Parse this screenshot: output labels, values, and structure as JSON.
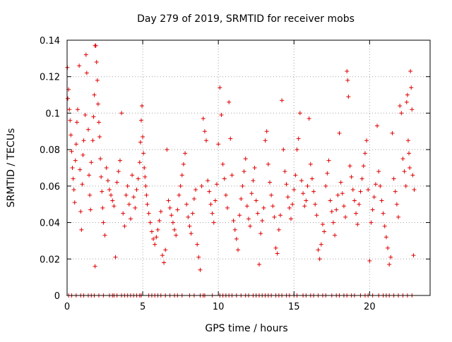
{
  "chart_data": {
    "type": "scatter",
    "title": "Day 279 of 2019, SRMTID for receiver mobs",
    "xlabel": "GPS time / hours",
    "ylabel": "SRMTID / TECUs",
    "xlim": [
      0,
      24
    ],
    "ylim": [
      0,
      0.14
    ],
    "x_ticks": [
      0,
      5,
      10,
      15,
      20
    ],
    "x_tick_labels": [
      "0",
      "5",
      "10",
      "15",
      "20"
    ],
    "y_ticks": [
      0,
      0.02,
      0.04,
      0.06,
      0.08,
      0.1,
      0.12,
      0.14
    ],
    "y_tick_labels": [
      "0",
      "0.02",
      "0.04",
      "0.06",
      "0.08",
      "0.1",
      "0.12",
      "0.14"
    ],
    "grid": true,
    "marker": "plus",
    "series": [
      {
        "name": "SRMTID",
        "color": "#e00000",
        "points": [
          [
            0.02,
            0.125
          ],
          [
            0.05,
            0.108
          ],
          [
            0.1,
            0.113
          ],
          [
            0.15,
            0.102
          ],
          [
            0.2,
            0.096
          ],
          [
            0.25,
            0.088
          ],
          [
            0.3,
            0.079
          ],
          [
            0.35,
            0.07
          ],
          [
            0.4,
            0.064
          ],
          [
            0.45,
            0.058
          ],
          [
            0.5,
            0.051
          ],
          [
            0.55,
            0.074
          ],
          [
            0.6,
            0.083
          ],
          [
            0.65,
            0.095
          ],
          [
            0.7,
            0.102
          ],
          [
            0.8,
            0.126
          ],
          [
            0.85,
            0.069
          ],
          [
            0.9,
            0.046
          ],
          [
            0.95,
            0.036
          ],
          [
            1.0,
            0.061
          ],
          [
            1.05,
            0.077
          ],
          [
            1.1,
            0.085
          ],
          [
            1.2,
            0.099
          ],
          [
            1.25,
            0.132
          ],
          [
            1.3,
            0.122
          ],
          [
            1.4,
            0.091
          ],
          [
            1.45,
            0.066
          ],
          [
            1.5,
            0.055
          ],
          [
            1.55,
            0.047
          ],
          [
            1.6,
            0.073
          ],
          [
            1.7,
            0.085
          ],
          [
            1.75,
            0.098
          ],
          [
            1.8,
            0.11
          ],
          [
            1.85,
            0.137
          ],
          [
            1.9,
            0.137
          ],
          [
            1.95,
            0.128
          ],
          [
            2.0,
            0.118
          ],
          [
            2.05,
            0.105
          ],
          [
            2.1,
            0.095
          ],
          [
            2.15,
            0.087
          ],
          [
            2.2,
            0.075
          ],
          [
            2.25,
            0.065
          ],
          [
            2.3,
            0.057
          ],
          [
            2.35,
            0.048
          ],
          [
            2.4,
            0.04
          ],
          [
            2.5,
            0.033
          ],
          [
            1.85,
            0.016
          ],
          [
            2.6,
            0.07
          ],
          [
            2.7,
            0.063
          ],
          [
            2.8,
            0.058
          ],
          [
            2.9,
            0.055
          ],
          [
            3.0,
            0.052
          ],
          [
            3.1,
            0.049
          ],
          [
            3.2,
            0.021
          ],
          [
            3.3,
            0.062
          ],
          [
            3.4,
            0.068
          ],
          [
            3.5,
            0.074
          ],
          [
            3.6,
            0.1
          ],
          [
            3.7,
            0.045
          ],
          [
            3.8,
            0.038
          ],
          [
            3.9,
            0.055
          ],
          [
            4.0,
            0.06
          ],
          [
            4.1,
            0.05
          ],
          [
            4.2,
            0.042
          ],
          [
            4.3,
            0.066
          ],
          [
            4.4,
            0.054
          ],
          [
            4.5,
            0.048
          ],
          [
            4.6,
            0.058
          ],
          [
            4.7,
            0.064
          ],
          [
            4.8,
            0.073
          ],
          [
            4.85,
            0.084
          ],
          [
            4.9,
            0.096
          ],
          [
            4.95,
            0.104
          ],
          [
            5.0,
            0.087
          ],
          [
            5.05,
            0.078
          ],
          [
            5.1,
            0.07
          ],
          [
            5.15,
            0.065
          ],
          [
            5.2,
            0.06
          ],
          [
            5.25,
            0.055
          ],
          [
            5.3,
            0.05
          ],
          [
            5.4,
            0.045
          ],
          [
            5.5,
            0.04
          ],
          [
            5.6,
            0.035
          ],
          [
            5.7,
            0.031
          ],
          [
            5.8,
            0.028
          ],
          [
            5.9,
            0.032
          ],
          [
            6.0,
            0.036
          ],
          [
            6.1,
            0.041
          ],
          [
            6.2,
            0.046
          ],
          [
            6.3,
            0.022
          ],
          [
            6.4,
            0.018
          ],
          [
            6.5,
            0.025
          ],
          [
            6.6,
            0.08
          ],
          [
            6.7,
            0.052
          ],
          [
            6.8,
            0.048
          ],
          [
            6.9,
            0.044
          ],
          [
            7.0,
            0.04
          ],
          [
            7.1,
            0.036
          ],
          [
            7.2,
            0.033
          ],
          [
            7.3,
            0.047
          ],
          [
            7.4,
            0.055
          ],
          [
            7.5,
            0.06
          ],
          [
            7.6,
            0.066
          ],
          [
            7.7,
            0.072
          ],
          [
            7.8,
            0.078
          ],
          [
            7.9,
            0.05
          ],
          [
            8.0,
            0.043
          ],
          [
            8.1,
            0.038
          ],
          [
            8.2,
            0.034
          ],
          [
            8.3,
            0.045
          ],
          [
            8.4,
            0.053
          ],
          [
            8.5,
            0.058
          ],
          [
            8.6,
            0.028
          ],
          [
            8.7,
            0.021
          ],
          [
            8.8,
            0.014
          ],
          [
            8.9,
            0.06
          ],
          [
            9.0,
            0.097
          ],
          [
            9.1,
            0.09
          ],
          [
            9.2,
            0.085
          ],
          [
            9.3,
            0.063
          ],
          [
            9.4,
            0.057
          ],
          [
            9.5,
            0.05
          ],
          [
            9.6,
            0.045
          ],
          [
            9.7,
            0.04
          ],
          [
            9.8,
            0.052
          ],
          [
            9.9,
            0.061
          ],
          [
            10.0,
            0.083
          ],
          [
            10.1,
            0.114
          ],
          [
            10.2,
            0.099
          ],
          [
            10.3,
            0.072
          ],
          [
            10.4,
            0.064
          ],
          [
            10.5,
            0.055
          ],
          [
            10.6,
            0.048
          ],
          [
            10.7,
            0.106
          ],
          [
            10.8,
            0.086
          ],
          [
            10.9,
            0.066
          ],
          [
            11.0,
            0.041
          ],
          [
            11.1,
            0.036
          ],
          [
            11.2,
            0.031
          ],
          [
            11.3,
            0.025
          ],
          [
            11.4,
            0.044
          ],
          [
            11.5,
            0.053
          ],
          [
            11.6,
            0.06
          ],
          [
            11.7,
            0.068
          ],
          [
            11.8,
            0.075
          ],
          [
            11.9,
            0.049
          ],
          [
            12.0,
            0.042
          ],
          [
            12.1,
            0.038
          ],
          [
            12.2,
            0.056
          ],
          [
            12.3,
            0.063
          ],
          [
            12.4,
            0.07
          ],
          [
            12.5,
            0.052
          ],
          [
            12.6,
            0.045
          ],
          [
            12.7,
            0.017
          ],
          [
            12.8,
            0.034
          ],
          [
            12.9,
            0.041
          ],
          [
            13.0,
            0.048
          ],
          [
            13.1,
            0.085
          ],
          [
            13.2,
            0.09
          ],
          [
            13.3,
            0.072
          ],
          [
            13.4,
            0.062
          ],
          [
            13.5,
            0.055
          ],
          [
            13.6,
            0.049
          ],
          [
            13.7,
            0.043
          ],
          [
            13.8,
            0.026
          ],
          [
            13.9,
            0.023
          ],
          [
            14.0,
            0.036
          ],
          [
            14.1,
            0.044
          ],
          [
            14.2,
            0.107
          ],
          [
            14.3,
            0.08
          ],
          [
            14.4,
            0.068
          ],
          [
            14.5,
            0.061
          ],
          [
            14.6,
            0.054
          ],
          [
            14.7,
            0.048
          ],
          [
            14.8,
            0.042
          ],
          [
            14.9,
            0.05
          ],
          [
            15.0,
            0.058
          ],
          [
            15.1,
            0.066
          ],
          [
            15.2,
            0.08
          ],
          [
            15.3,
            0.086
          ],
          [
            15.4,
            0.1
          ],
          [
            15.5,
            0.063
          ],
          [
            15.6,
            0.056
          ],
          [
            15.7,
            0.049
          ],
          [
            15.8,
            0.052
          ],
          [
            15.9,
            0.06
          ],
          [
            16.0,
            0.097
          ],
          [
            16.1,
            0.072
          ],
          [
            16.2,
            0.064
          ],
          [
            16.3,
            0.057
          ],
          [
            16.4,
            0.05
          ],
          [
            16.5,
            0.044
          ],
          [
            16.6,
            0.025
          ],
          [
            16.7,
            0.02
          ],
          [
            16.8,
            0.028
          ],
          [
            16.9,
            0.039
          ],
          [
            17.0,
            0.035
          ],
          [
            17.1,
            0.06
          ],
          [
            17.2,
            0.067
          ],
          [
            17.3,
            0.074
          ],
          [
            17.4,
            0.052
          ],
          [
            17.5,
            0.046
          ],
          [
            17.6,
            0.04
          ],
          [
            17.7,
            0.033
          ],
          [
            17.8,
            0.047
          ],
          [
            17.9,
            0.055
          ],
          [
            18.0,
            0.089
          ],
          [
            18.1,
            0.062
          ],
          [
            18.2,
            0.056
          ],
          [
            18.3,
            0.049
          ],
          [
            18.4,
            0.043
          ],
          [
            18.5,
            0.123
          ],
          [
            18.55,
            0.118
          ],
          [
            18.6,
            0.109
          ],
          [
            18.7,
            0.071
          ],
          [
            18.8,
            0.065
          ],
          [
            18.9,
            0.058
          ],
          [
            19.0,
            0.052
          ],
          [
            19.1,
            0.045
          ],
          [
            19.2,
            0.039
          ],
          [
            19.3,
            0.05
          ],
          [
            19.4,
            0.057
          ],
          [
            19.5,
            0.064
          ],
          [
            19.6,
            0.071
          ],
          [
            19.7,
            0.078
          ],
          [
            19.8,
            0.085
          ],
          [
            19.9,
            0.058
          ],
          [
            20.0,
            0.019
          ],
          [
            20.1,
            0.04
          ],
          [
            20.2,
            0.047
          ],
          [
            20.3,
            0.054
          ],
          [
            20.4,
            0.061
          ],
          [
            20.5,
            0.093
          ],
          [
            20.6,
            0.068
          ],
          [
            20.7,
            0.06
          ],
          [
            20.8,
            0.052
          ],
          [
            20.9,
            0.045
          ],
          [
            21.0,
            0.038
          ],
          [
            21.1,
            0.032
          ],
          [
            21.2,
            0.026
          ],
          [
            21.3,
            0.017
          ],
          [
            21.4,
            0.021
          ],
          [
            21.5,
            0.089
          ],
          [
            21.6,
            0.064
          ],
          [
            21.7,
            0.057
          ],
          [
            21.8,
            0.05
          ],
          [
            21.9,
            0.043
          ],
          [
            22.0,
            0.104
          ],
          [
            22.1,
            0.1
          ],
          [
            22.2,
            0.075
          ],
          [
            22.3,
            0.068
          ],
          [
            22.4,
            0.06
          ],
          [
            22.45,
            0.106
          ],
          [
            22.5,
            0.11
          ],
          [
            22.55,
            0.085
          ],
          [
            22.6,
            0.078
          ],
          [
            22.65,
            0.07
          ],
          [
            22.7,
            0.123
          ],
          [
            22.75,
            0.114
          ],
          [
            22.8,
            0.102
          ],
          [
            22.85,
            0.066
          ],
          [
            22.9,
            0.022
          ],
          [
            22.95,
            0.058
          ]
        ]
      }
    ],
    "zero_points_x": [
      0.1,
      0.3,
      0.6,
      0.9,
      1.1,
      1.4,
      1.6,
      1.8,
      2.1,
      2.4,
      2.8,
      3.0,
      3.1,
      3.3,
      3.6,
      3.8,
      4.0,
      4.2,
      4.4,
      4.6,
      4.8,
      4.9,
      5.4,
      5.6,
      5.8,
      6.0,
      6.2,
      6.5,
      6.8,
      7.1,
      7.3,
      7.6,
      8.1,
      8.4,
      8.8,
      9.0,
      9.1,
      9.6,
      10.1,
      10.3,
      10.5,
      10.7,
      10.9,
      11.2,
      11.5,
      11.8,
      12.0,
      12.3,
      12.5,
      12.7,
      12.9,
      13.1,
      13.3,
      13.5,
      13.8,
      14.0,
      14.2,
      14.5,
      14.7,
      15.0,
      15.2,
      15.6,
      15.8,
      16.1,
      16.3,
      16.6,
      16.9,
      17.1,
      17.5,
      17.8,
      18.0,
      18.3,
      18.5,
      18.8,
      19.0,
      19.4,
      19.7,
      19.9,
      20.2,
      20.6,
      20.9,
      21.1,
      21.3,
      21.6,
      21.9,
      22.2,
      22.5,
      22.8
    ]
  }
}
